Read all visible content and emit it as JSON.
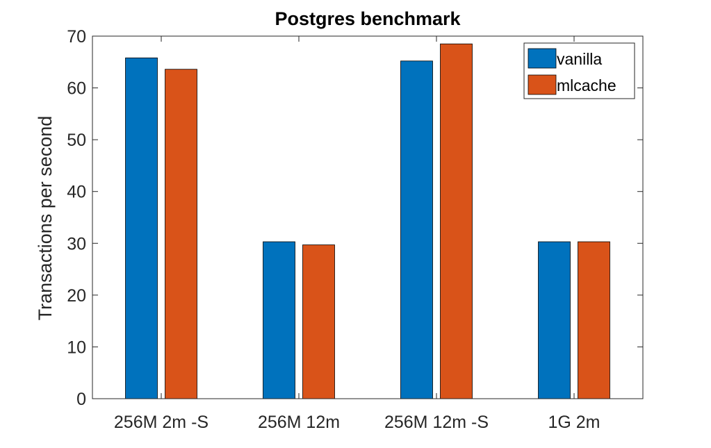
{
  "chart_data": {
    "type": "bar",
    "title": "Postgres benchmark",
    "xlabel": "",
    "ylabel": "Transactions per second",
    "categories": [
      "256M 2m -S",
      "256M 12m",
      "256M 12m -S",
      "1G 2m"
    ],
    "series": [
      {
        "name": "vanilla",
        "color": "#0072BD",
        "values": [
          65.8,
          30.3,
          65.2,
          30.3
        ]
      },
      {
        "name": "mlcache",
        "color": "#D95319",
        "values": [
          63.6,
          29.7,
          68.5,
          30.3
        ]
      }
    ],
    "ylim": [
      0,
      70
    ],
    "yticks": [
      0,
      10,
      20,
      30,
      40,
      50,
      60,
      70
    ],
    "grid": false,
    "legend_position": "top-right"
  }
}
